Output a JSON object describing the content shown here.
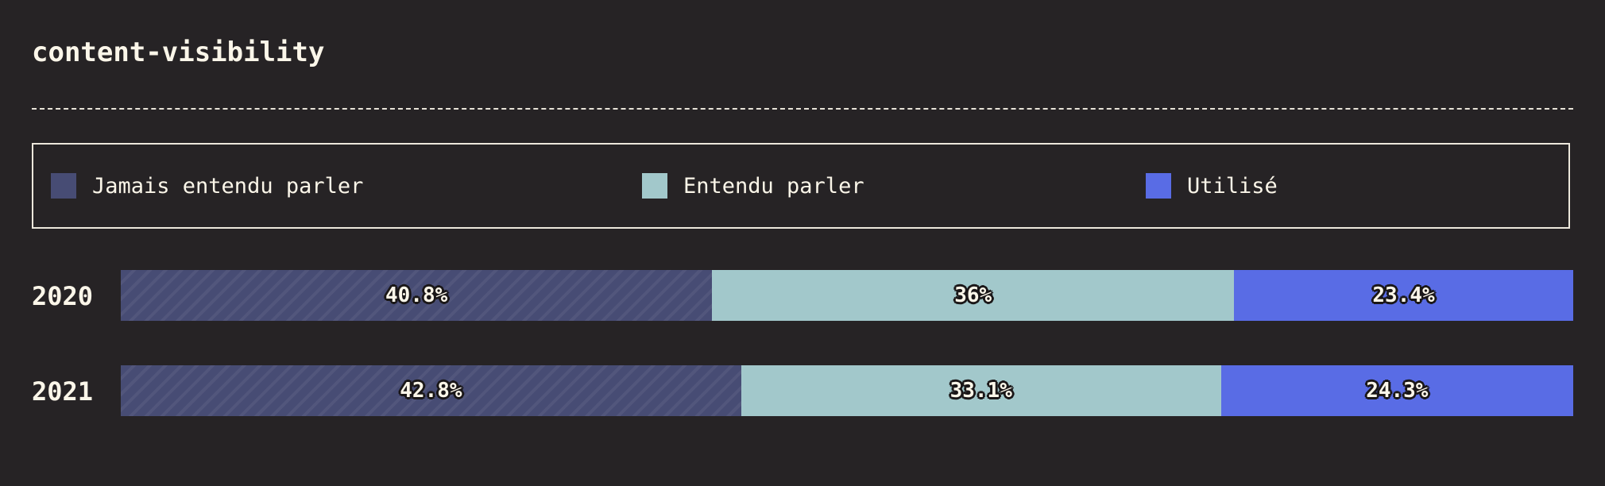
{
  "title": "content-visibility",
  "chart_data": {
    "type": "bar",
    "orientation": "horizontal",
    "stacked": true,
    "normalized": true,
    "categories": [
      "2020",
      "2021"
    ],
    "series": [
      {
        "name": "Jamais entendu parler",
        "color": "#474c74",
        "values": [
          40.8,
          42.8
        ],
        "labels": [
          "40.8%",
          "42.8%"
        ]
      },
      {
        "name": "Entendu parler",
        "color": "#a2c8cb",
        "values": [
          36,
          33.1
        ],
        "labels": [
          "36%",
          "33.1%"
        ]
      },
      {
        "name": "Utilisé",
        "color": "#596ce5",
        "values": [
          23.4,
          24.3
        ],
        "labels": [
          "23.4%",
          "24.3%"
        ]
      }
    ],
    "legend": "top",
    "grid": false
  }
}
